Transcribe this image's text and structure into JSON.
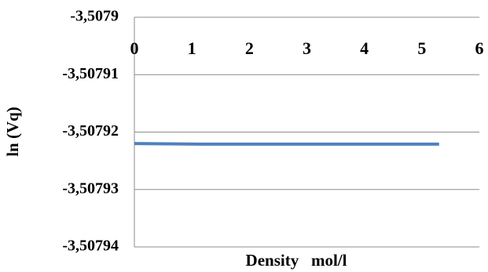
{
  "chart_data": {
    "type": "line",
    "title": "",
    "xlabel": "Density   mol/l",
    "ylabel": "ln (Vq)",
    "xlim": [
      0,
      6
    ],
    "ylim": [
      -3.50794,
      -3.5079
    ],
    "x_tick_labels": [
      "0",
      "1",
      "2",
      "3",
      "4",
      "5",
      "6"
    ],
    "y_tick_labels": [
      "-3,5079",
      "-3,50791",
      "-3,50792",
      "-3,50793",
      "-3,50794"
    ],
    "x_ticks": [
      0,
      1,
      2,
      3,
      4,
      5,
      6
    ],
    "y_ticks": [
      -3.5079,
      -3.50791,
      -3.50792,
      -3.50793,
      -3.50794
    ],
    "grid": true,
    "legend": "none",
    "series": [
      {
        "color": "#4f81bd",
        "x": [
          0,
          1.2,
          5.3
        ],
        "y": [
          -3.507922,
          -3.5079221,
          -3.5079221
        ]
      }
    ]
  }
}
